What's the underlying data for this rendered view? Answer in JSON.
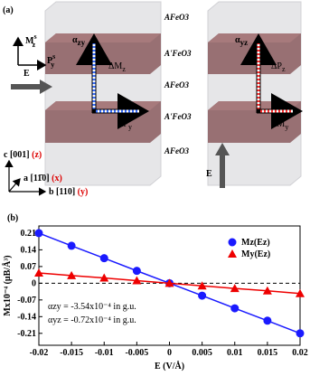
{
  "diagram": {
    "panel_label": "(a)",
    "layers": [
      "AFeO3",
      "A'FeO3",
      "AFeO3",
      "A'FeO3",
      "AFeO3"
    ],
    "m_axis": [
      "M",
      "s",
      "z"
    ],
    "p_axis": [
      "P",
      "s",
      "y"
    ],
    "field_left": "E",
    "field_right": "E",
    "alpha_zy": [
      "α",
      "zy"
    ],
    "alpha_yz": [
      "α",
      "yz"
    ],
    "delta_mz": [
      "ΔM",
      "z"
    ],
    "delta_py": [
      "ΔP",
      "y"
    ],
    "delta_pz": [
      "ΔP",
      "z"
    ],
    "delta_my": [
      "ΔM",
      "y"
    ],
    "axis_c": [
      "c [001] ",
      "(z)"
    ],
    "axis_a": [
      "a [11̄0] ",
      "(x)"
    ],
    "axis_b": [
      "b [110] ",
      "(y)"
    ]
  },
  "chart_data": {
    "type": "scatter-line",
    "panel_label": "(b)",
    "x_label": "E (V/Å)",
    "y_label": "Mx10⁻⁴ (μB/Å³)",
    "annotations": [
      "αzy = -3.54x10⁻⁴ in g.u.",
      "αyz = -0.72x10⁻⁴ in g.u."
    ],
    "x": [
      -0.02,
      -0.015,
      -0.01,
      -0.005,
      0,
      0.005,
      0.01,
      0.015,
      0.02
    ],
    "series": [
      {
        "name": "Mz(Ez)",
        "color": "#1a1aff",
        "marker": "circle",
        "values": [
          0.21,
          0.157,
          0.105,
          0.052,
          0,
          -0.052,
          -0.105,
          -0.157,
          -0.21
        ]
      },
      {
        "name": "My(Ez)",
        "color": "#ee0000",
        "marker": "triangle",
        "values": [
          0.043,
          0.032,
          0.022,
          0.011,
          0,
          -0.011,
          -0.022,
          -0.032,
          -0.043
        ]
      }
    ],
    "xlim": [
      -0.02,
      0.02
    ],
    "xticks": [
      -0.02,
      -0.015,
      -0.01,
      -0.005,
      0,
      0.005,
      0.01,
      0.015,
      0.02
    ],
    "ylim": [
      -0.26,
      0.24
    ],
    "yticks": [
      -0.21,
      -0.14,
      -0.07,
      0,
      0.07,
      0.14,
      0.21
    ],
    "legend": "upper right"
  }
}
